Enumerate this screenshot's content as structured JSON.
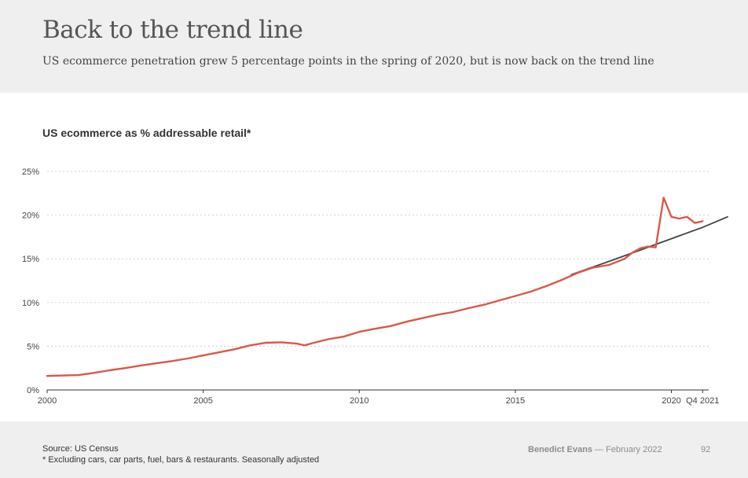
{
  "header": {
    "title": "Back to the trend line",
    "subtitle": "US ecommerce penetration grew 5 percentage points in the spring of 2020, but is now back on the trend line"
  },
  "footer": {
    "source": "Source: US Census",
    "note": "* Excluding cars, car parts, fuel, bars & restaurants. Seasonally adjusted",
    "author": "Benedict Evans",
    "date": "— February 2022",
    "page": "92"
  },
  "chart_data": {
    "type": "line",
    "title": "US ecommerce as % addressable retail*",
    "xlabel": "",
    "ylabel": "",
    "xlim": [
      2000,
      2021.8
    ],
    "ylim": [
      0,
      25
    ],
    "y_ticks": [
      {
        "value": 0,
        "label": "0%"
      },
      {
        "value": 5,
        "label": "5%"
      },
      {
        "value": 10,
        "label": "10%"
      },
      {
        "value": 15,
        "label": "15%"
      },
      {
        "value": 20,
        "label": "20%"
      },
      {
        "value": 25,
        "label": "25%"
      }
    ],
    "x_ticks": [
      {
        "value": 2000,
        "label": "2000"
      },
      {
        "value": 2005,
        "label": "2005"
      },
      {
        "value": 2010,
        "label": "2010"
      },
      {
        "value": 2015,
        "label": "2015"
      },
      {
        "value": 2020,
        "label": "2020"
      },
      {
        "value": 2021,
        "label": "Q4 2021"
      }
    ],
    "grid": "horizontal dotted",
    "series": [
      {
        "color": "#d9584a",
        "x": [
          2000,
          2001,
          2001.5,
          2002,
          2002.5,
          2003,
          2003.5,
          2004,
          2004.5,
          2005,
          2005.5,
          2006,
          2006.5,
          2007,
          2007.5,
          2008,
          2008.25,
          2008.5,
          2009,
          2009.5,
          2010,
          2010.5,
          2011,
          2011.5,
          2012,
          2012.5,
          2013,
          2013.5,
          2014,
          2014.5,
          2015,
          2015.5,
          2016,
          2016.5,
          2017,
          2017.5,
          2018,
          2018.5,
          2018.75,
          2019,
          2019.25,
          2019.5,
          2019.75,
          2020,
          2020.25,
          2020.5,
          2020.75,
          2021
        ],
        "y": [
          1.6,
          1.7,
          1.95,
          2.25,
          2.5,
          2.8,
          3.05,
          3.3,
          3.6,
          3.95,
          4.3,
          4.65,
          5.1,
          5.4,
          5.45,
          5.3,
          5.1,
          5.35,
          5.8,
          6.1,
          6.65,
          7.0,
          7.3,
          7.8,
          8.2,
          8.6,
          8.9,
          9.35,
          9.75,
          10.25,
          10.75,
          11.25,
          11.9,
          12.6,
          13.4,
          14.0,
          14.3,
          15.0,
          15.7,
          16.2,
          16.4,
          16.3,
          22.0,
          19.8,
          19.6,
          19.8,
          19.1,
          19.3
        ]
      },
      {
        "color": "#444444",
        "x": [
          2016.8,
          2018.0,
          2019.0,
          2020.0,
          2021.0,
          2021.8
        ],
        "y": [
          13.2,
          14.7,
          16.0,
          17.3,
          18.6,
          19.8
        ]
      }
    ]
  }
}
